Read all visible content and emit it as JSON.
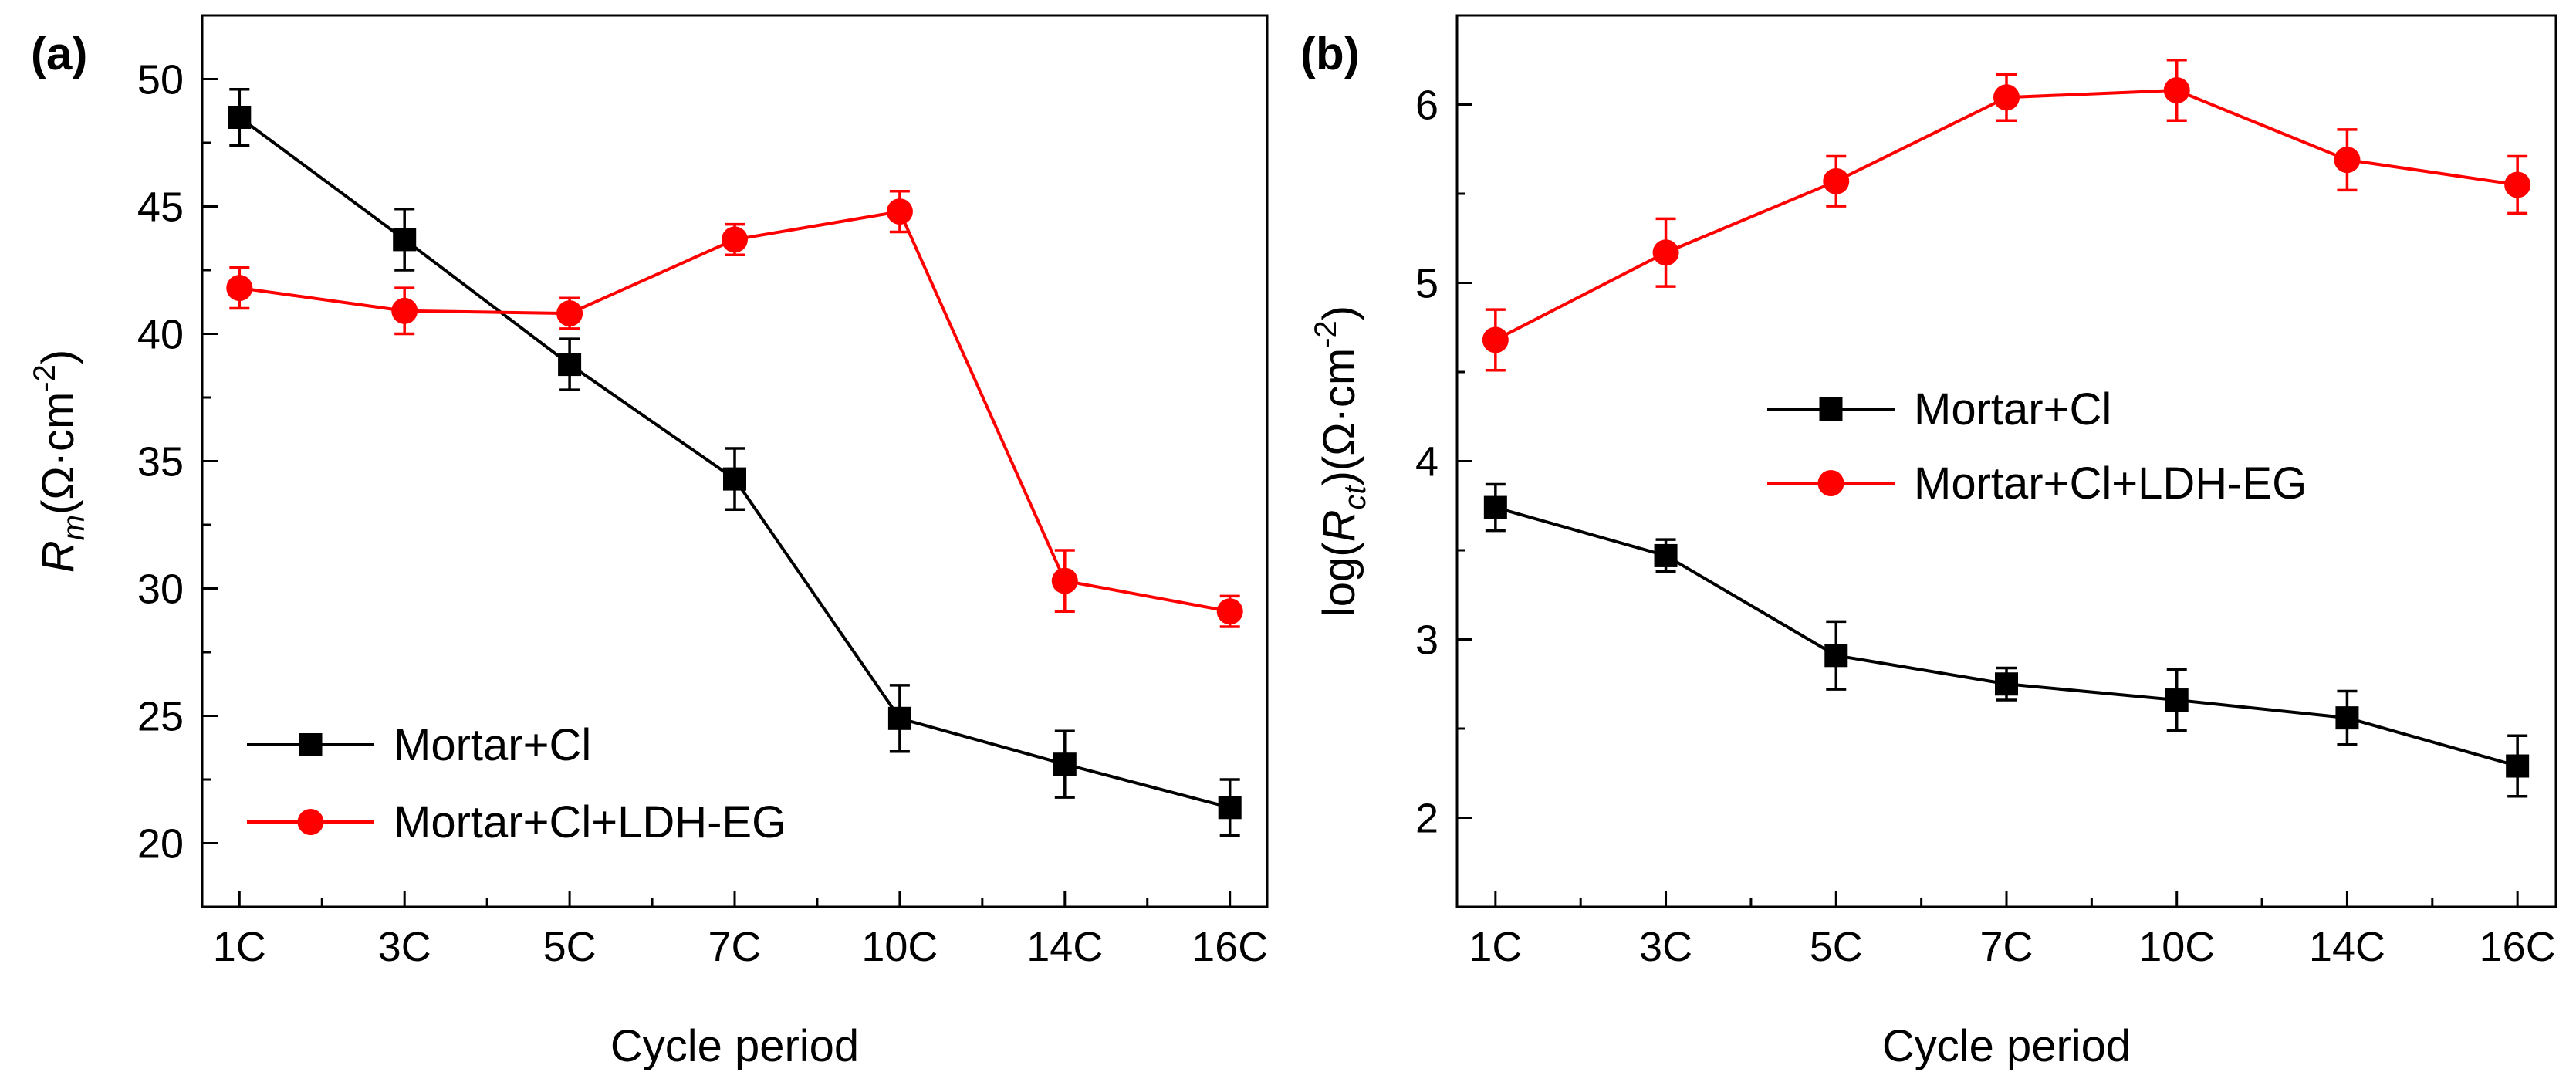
{
  "chart_data": [
    {
      "type": "line",
      "panel_label": "(a)",
      "ylabel": "R_m(Ω·cm^-2)",
      "ylabel_parts": {
        "symbol": "R",
        "subscript": "m",
        "unit_open": "(Ω·cm",
        "unit_exp": "-2",
        "unit_close": ")"
      },
      "xlabel": "Cycle period",
      "categories": [
        "1C",
        "3C",
        "5C",
        "7C",
        "10C",
        "14C",
        "16C"
      ],
      "ylim": [
        17.5,
        52.5
      ],
      "yticks": [
        20,
        25,
        30,
        35,
        40,
        45,
        50
      ],
      "legend_position": "bottom-left",
      "series": [
        {
          "name": "Mortar+Cl",
          "color": "#000000",
          "marker": "square",
          "values": [
            48.5,
            43.7,
            38.8,
            34.3,
            24.9,
            23.1,
            21.4
          ],
          "errors": [
            1.1,
            1.2,
            1.0,
            1.2,
            1.3,
            1.3,
            1.1
          ]
        },
        {
          "name": "Mortar+Cl+LDH-EG",
          "color": "#ff0000",
          "marker": "circle",
          "values": [
            41.8,
            40.9,
            40.8,
            43.7,
            44.8,
            30.3,
            29.1
          ],
          "errors": [
            0.8,
            0.9,
            0.6,
            0.6,
            0.8,
            1.2,
            0.6
          ]
        }
      ]
    },
    {
      "type": "line",
      "panel_label": "(b)",
      "ylabel": "log(R_ct)(Ω·cm^-2)",
      "ylabel_parts": {
        "prefix": "log(",
        "symbol": "R",
        "subscript": "ct",
        "unit_open": ")(Ω·cm",
        "unit_exp": "-2",
        "unit_close": ")"
      },
      "xlabel": "Cycle period",
      "categories": [
        "1C",
        "3C",
        "5C",
        "7C",
        "10C",
        "14C",
        "16C"
      ],
      "ylim": [
        1.5,
        6.5
      ],
      "yticks": [
        2,
        3,
        4,
        5,
        6
      ],
      "legend_position": "center-right",
      "series": [
        {
          "name": "Mortar+Cl",
          "color": "#000000",
          "marker": "square",
          "values": [
            3.74,
            3.47,
            2.91,
            2.75,
            2.66,
            2.56,
            2.29
          ],
          "errors": [
            0.13,
            0.09,
            0.19,
            0.09,
            0.17,
            0.15,
            0.17
          ]
        },
        {
          "name": "Mortar+Cl+LDH-EG",
          "color": "#ff0000",
          "marker": "circle",
          "values": [
            4.68,
            5.17,
            5.57,
            6.04,
            6.08,
            5.69,
            5.55
          ],
          "errors": [
            0.17,
            0.19,
            0.14,
            0.13,
            0.17,
            0.17,
            0.16
          ]
        }
      ]
    }
  ]
}
